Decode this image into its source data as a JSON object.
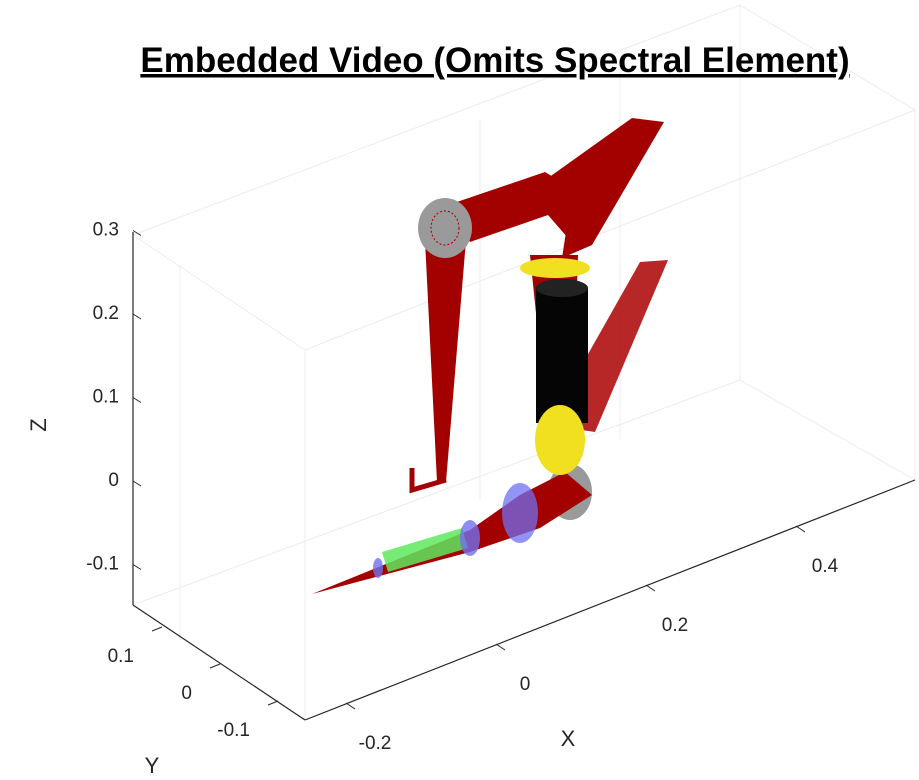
{
  "title": "Embedded Video (Omits Spectral Element)",
  "axes": {
    "x": {
      "label": "X",
      "ticks": [
        -0.2,
        0,
        0.2,
        0.4
      ]
    },
    "y": {
      "label": "Y",
      "ticks": [
        0.1,
        0,
        -0.1
      ]
    },
    "z": {
      "label": "Z",
      "ticks": [
        0.3,
        0.2,
        0.1,
        0,
        -0.1
      ]
    }
  }
}
